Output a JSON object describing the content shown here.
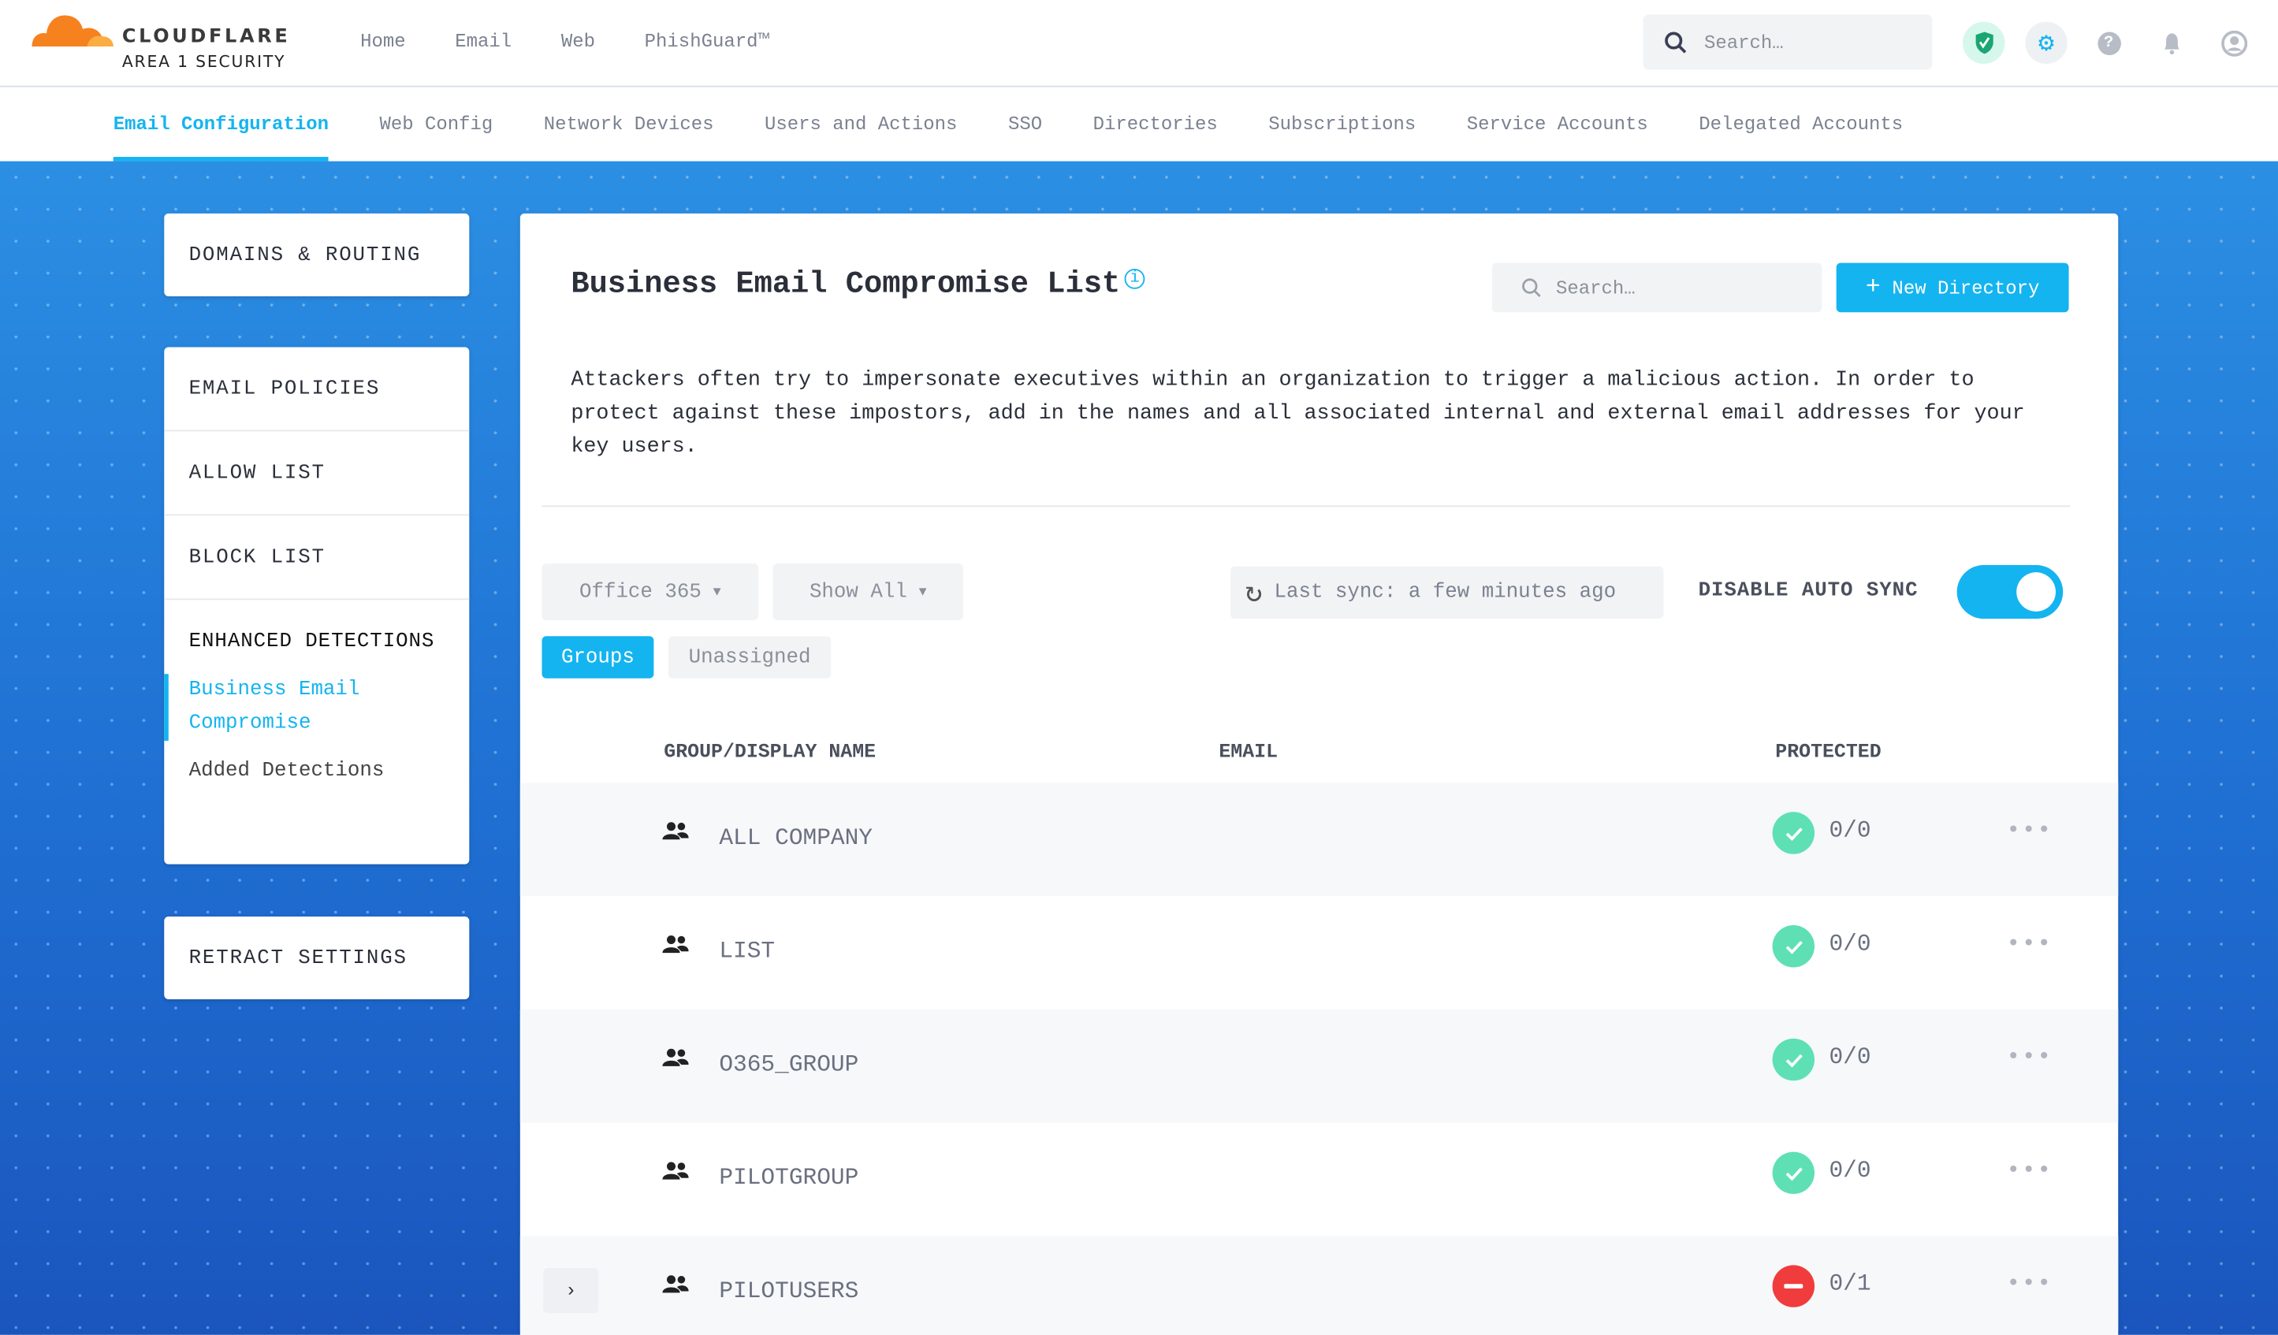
{
  "brand": {
    "name": "CLOUDFLARE",
    "subtitle": "AREA 1 SECURITY"
  },
  "topnav": [
    "Home",
    "Email",
    "Web",
    "PhishGuard™"
  ],
  "global_search": {
    "placeholder": "Search…"
  },
  "top_icons": [
    "shield-check-icon",
    "gear-icon",
    "help-icon",
    "bell-icon",
    "user-icon"
  ],
  "subnav": [
    "Email Configuration",
    "Web Config",
    "Network Devices",
    "Users and Actions",
    "SSO",
    "Directories",
    "Subscriptions",
    "Service Accounts",
    "Delegated Accounts"
  ],
  "sidebar": {
    "domains": "DOMAINS & ROUTING",
    "email_policies": "EMAIL POLICIES",
    "allow_list": "ALLOW LIST",
    "block_list": "BLOCK LIST",
    "enhanced": "ENHANCED DETECTIONS",
    "bec": "Business Email Compromise",
    "added": "Added Detections",
    "retract": "RETRACT SETTINGS"
  },
  "main": {
    "title": "Business Email Compromise List",
    "search_placeholder": "Search…",
    "new_directory": "New Directory",
    "description": "Attackers often try to impersonate executives within an organization to trigger a malicious action. In order to protect against these impostors, add in the names and all associated internal and external email addresses for your key users.",
    "provider": "Office 365",
    "filter": "Show All",
    "last_sync": "Last sync: a few minutes ago",
    "disable_auto_sync": "DISABLE AUTO SYNC",
    "auto_sync_enabled": true,
    "tabs": [
      "Groups",
      "Unassigned"
    ],
    "columns": [
      "GROUP/DISPLAY NAME",
      "EMAIL",
      "PROTECTED"
    ],
    "rows": [
      {
        "name": "ALL COMPANY",
        "protected": "0/0",
        "status": "ok"
      },
      {
        "name": "LIST",
        "protected": "0/0",
        "status": "ok"
      },
      {
        "name": "O365_GROUP",
        "protected": "0/0",
        "status": "ok"
      },
      {
        "name": "PILOTGROUP",
        "protected": "0/0",
        "status": "ok"
      },
      {
        "name": "PILOTUSERS",
        "protected": "0/1",
        "status": "error"
      }
    ]
  },
  "colors": {
    "accent": "#14b4f0",
    "ok": "#5ee0b4",
    "error": "#f03c3c"
  }
}
